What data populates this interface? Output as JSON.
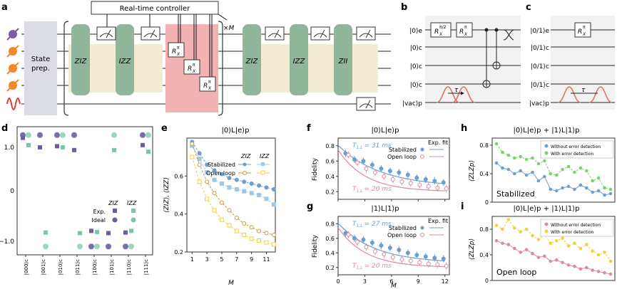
{
  "panels": {
    "a": {
      "label": "a",
      "controller": "Real-time controller",
      "repeat": "×M",
      "state_prep": [
        "State",
        "prep."
      ],
      "gates": [
        "ZIZ",
        "IZZ",
        "ZIZ",
        "IZZ",
        "ZII"
      ],
      "rx_gates": [
        "R",
        "π",
        "X"
      ]
    },
    "b": {
      "label": "b",
      "wires": [
        "|0⟩e",
        "|0⟩c",
        "|0⟩c",
        "|0⟩c",
        "|vac⟩p"
      ],
      "g1": "R",
      "g1sup": "π/2",
      "g1sub": "X",
      "g2": "R",
      "g2sup": "π",
      "g2sub": "X",
      "tau": "τ"
    },
    "c": {
      "label": "c",
      "wires": [
        "|0/1⟩e",
        "|0/1⟩c",
        "|0/1⟩c",
        "|0/1⟩c",
        "|vac⟩p"
      ],
      "g": "R",
      "gsup": "π",
      "gsub": "X",
      "tau": "τ"
    },
    "d": {
      "label": "d",
      "yticks": [
        "1.0",
        "0",
        "−1.0"
      ],
      "xticks": [
        "|000⟩c",
        "|001⟩c",
        "|010⟩c",
        "|011⟩c",
        "|100⟩c",
        "|101⟩c",
        "|110⟩c",
        "|111⟩c"
      ],
      "legend": {
        "h1": "ZIZ",
        "h2": "IZZ",
        "r1": "Exp.",
        "r2": "Ideal"
      }
    },
    "e": {
      "label": "e",
      "title": "|0⟩L|e⟩p",
      "ylabel": "⟨ZIZ⟩, ⟨IZZ⟩",
      "xlabel": "M",
      "legend": {
        "h1": "ZIZ",
        "h2": "IZZ",
        "r1": "Stabilized",
        "r2": "Open loop"
      }
    },
    "f": {
      "label": "f",
      "title": "|0⟩L|e⟩p",
      "ylabel": "Fidelity",
      "t1": "T",
      "t1sub": "1,L",
      "t1val": "= 31 ms",
      "t2": "T",
      "t2sub": "1,L",
      "t2val": "= 20 ms",
      "legend": {
        "h": "Exp. fit",
        "r1": "Stabilized",
        "r2": "Open loop"
      }
    },
    "g": {
      "label": "g",
      "title": "|1⟩L|1⟩p",
      "ylabel": "Fidelity",
      "xlabel": "M",
      "t1": "T",
      "t1sub": "1,L",
      "t1val": "= 27 ms",
      "t2": "T",
      "t2sub": "1,L",
      "t2val": "= 20 ms",
      "legend": {
        "h": "Exp. fit",
        "r1": "Stabilized",
        "r2": "Open loop"
      }
    },
    "h": {
      "label": "h",
      "title": "|0⟩L|e⟩p + |1⟩L|1⟩p",
      "ylabel": "⟨ZLZp⟩",
      "legend": [
        "Without error detection",
        "With error detection"
      ],
      "tag": "Stabilized"
    },
    "i": {
      "label": "i",
      "title": "|0⟩L|e⟩p + |1⟩L|1⟩p",
      "ylabel": "⟨ZLZp⟩",
      "legend": [
        "Without error detection",
        "With error detection"
      ],
      "tag": "Open loop"
    }
  },
  "colors": {
    "blue": "#6a9fd0",
    "lblue": "#9cc8ea",
    "gold": "#c49a3a",
    "yellow": "#f2d23c",
    "pink": "#d98aa4",
    "green": "#7bd36b",
    "purple": "#6f5c9e",
    "teal": "#6ec1a0",
    "gate": "#8fb59a",
    "tan": "#f4ecd2",
    "red": "#f3b3b3"
  },
  "chart_data": [
    {
      "id": "d",
      "type": "scatter",
      "title": "",
      "xlabel": "",
      "ylabel": "",
      "ylim": [
        -1.15,
        1.15
      ],
      "categories": [
        "|000⟩c",
        "|001⟩c",
        "|010⟩c",
        "|011⟩c",
        "|100⟩c",
        "|101⟩c",
        "|110⟩c",
        "|111⟩c"
      ],
      "series": [
        {
          "name": "ZIZ Exp.",
          "values": [
            0.95,
            0.78,
            0.8,
            0.73,
            -0.72,
            -0.76,
            -0.75,
            0.82
          ]
        },
        {
          "name": "IZZ Exp.",
          "values": [
            0.82,
            -0.75,
            0.78,
            -0.76,
            -0.74,
            0.73,
            -0.72,
            0.7
          ]
        },
        {
          "name": "ZIZ Ideal",
          "values": [
            1,
            1,
            1,
            1,
            -1,
            -1,
            -1,
            1
          ]
        },
        {
          "name": "IZZ Ideal",
          "values": [
            1,
            -1,
            1,
            -1,
            -1,
            1,
            -1,
            1
          ]
        }
      ]
    },
    {
      "id": "e",
      "type": "line",
      "title": "|0⟩L|e⟩p",
      "xlabel": "M",
      "ylabel": "⟨ZIZ⟩, ⟨IZZ⟩",
      "ylim": [
        0.2,
        0.8
      ],
      "xlim": [
        0.3,
        12.2
      ],
      "xticks": [
        1,
        3,
        5,
        7,
        9,
        11
      ],
      "yticks": [
        0.2,
        0.4,
        0.6
      ],
      "x": [
        1,
        2,
        3,
        4,
        5,
        6,
        7,
        8,
        9,
        10,
        11,
        12
      ],
      "series": [
        {
          "name": "Stabilized ZIZ",
          "values": [
            0.78,
            0.72,
            0.66,
            0.63,
            0.61,
            0.59,
            0.58,
            0.57,
            0.56,
            0.55,
            0.54,
            0.53
          ]
        },
        {
          "name": "Stabilized IZZ",
          "values": [
            0.76,
            0.69,
            0.62,
            0.58,
            0.56,
            0.54,
            0.53,
            0.52,
            0.51,
            0.5,
            0.48,
            0.45
          ]
        },
        {
          "name": "Open loop ZIZ",
          "values": [
            0.77,
            0.66,
            0.57,
            0.51,
            0.46,
            0.42,
            0.38,
            0.35,
            0.33,
            0.31,
            0.3,
            0.29
          ]
        },
        {
          "name": "Open loop IZZ",
          "values": [
            0.7,
            0.57,
            0.48,
            0.42,
            0.37,
            0.34,
            0.31,
            0.29,
            0.27,
            0.26,
            0.25,
            0.24
          ]
        }
      ]
    },
    {
      "id": "f",
      "type": "scatter",
      "title": "|0⟩L|e⟩p",
      "xlabel": "",
      "ylabel": "Fidelity",
      "ylim": [
        0.1,
        0.9
      ],
      "xlim": [
        0,
        12.5
      ],
      "yticks": [
        0.2,
        0.4,
        0.6,
        0.8
      ],
      "x": [
        1,
        2,
        3,
        4,
        5,
        6,
        7,
        8,
        9,
        10,
        11,
        12
      ],
      "series": [
        {
          "name": "Stabilized",
          "values": [
            0.7,
            0.62,
            0.6,
            0.55,
            0.5,
            0.47,
            0.45,
            0.42,
            0.38,
            0.36,
            0.34,
            0.32
          ],
          "fit_T": 31
        },
        {
          "name": "Open loop",
          "values": [
            0.68,
            0.58,
            0.5,
            0.45,
            0.4,
            0.36,
            0.33,
            0.31,
            0.29,
            0.27,
            0.25,
            0.24
          ],
          "fit_T": 20
        }
      ]
    },
    {
      "id": "g",
      "type": "scatter",
      "title": "|1⟩L|1⟩p",
      "xlabel": "M",
      "ylabel": "Fidelity",
      "ylim": [
        0.1,
        0.9
      ],
      "xlim": [
        0,
        12.5
      ],
      "xticks": [
        0,
        3,
        6,
        9,
        12
      ],
      "yticks": [
        0.2,
        0.4,
        0.6,
        0.8
      ],
      "x": [
        1,
        2,
        3,
        4,
        5,
        6,
        7,
        8,
        9,
        10,
        11,
        12
      ],
      "series": [
        {
          "name": "Stabilized",
          "values": [
            0.67,
            0.6,
            0.58,
            0.54,
            0.5,
            0.47,
            0.44,
            0.4,
            0.37,
            0.35,
            0.33,
            0.32
          ],
          "fit_T": 27
        },
        {
          "name": "Open loop",
          "values": [
            0.65,
            0.55,
            0.48,
            0.42,
            0.38,
            0.34,
            0.31,
            0.29,
            0.27,
            0.25,
            0.24,
            0.22
          ],
          "fit_T": 20
        }
      ]
    },
    {
      "id": "h",
      "type": "line",
      "title": "|0⟩L|e⟩p + |1⟩L|1⟩p",
      "xlabel": "",
      "ylabel": "⟨ZLZp⟩",
      "ylim": [
        0,
        0.9
      ],
      "yticks": [
        0,
        0.4,
        0.8
      ],
      "x": [
        1,
        2,
        3,
        4,
        5,
        6,
        7,
        8,
        9,
        10,
        11,
        12,
        13,
        14,
        15,
        16,
        17,
        18,
        19,
        20
      ],
      "series": [
        {
          "name": "Without error detection",
          "values": [
            0.55,
            0.48,
            0.46,
            0.4,
            0.44,
            0.38,
            0.42,
            0.3,
            0.36,
            0.18,
            0.16,
            0.2,
            0.22,
            0.18,
            0.24,
            0.2,
            0.14,
            0.16,
            0.1,
            0.12
          ]
        },
        {
          "name": "With error detection",
          "values": [
            0.82,
            0.7,
            0.66,
            0.62,
            0.64,
            0.6,
            0.62,
            0.54,
            0.58,
            0.4,
            0.38,
            0.46,
            0.5,
            0.42,
            0.48,
            0.44,
            0.3,
            0.34,
            0.2,
            0.18
          ]
        }
      ]
    },
    {
      "id": "i",
      "type": "line",
      "title": "|0⟩L|e⟩p + |1⟩L|1⟩p",
      "xlabel": "",
      "ylabel": "⟨ZLZp⟩",
      "ylim": [
        0,
        1.0
      ],
      "yticks": [
        0,
        0.4,
        0.8
      ],
      "x": [
        1,
        2,
        3,
        4,
        5,
        6,
        7,
        8,
        9,
        10,
        11,
        12,
        13,
        14,
        15,
        16,
        17,
        18,
        19,
        20
      ],
      "series": [
        {
          "name": "Without error detection",
          "values": [
            0.62,
            0.58,
            0.56,
            0.5,
            0.44,
            0.48,
            0.42,
            0.36,
            0.38,
            0.3,
            0.32,
            0.28,
            0.24,
            0.22,
            0.18,
            0.2,
            0.16,
            0.14,
            0.12,
            0.1
          ]
        },
        {
          "name": "With error detection",
          "values": [
            0.86,
            0.8,
            0.95,
            0.82,
            0.76,
            0.8,
            0.7,
            0.64,
            0.72,
            0.58,
            0.62,
            0.66,
            0.54,
            0.58,
            0.5,
            0.56,
            0.46,
            0.4,
            0.44,
            0.3
          ]
        }
      ]
    }
  ]
}
